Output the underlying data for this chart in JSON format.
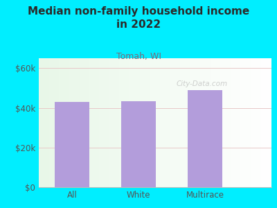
{
  "categories": [
    "All",
    "White",
    "Multirace"
  ],
  "values": [
    43000,
    43200,
    49000
  ],
  "bar_color": "#b39ddb",
  "title": "Median non-family household income\nin 2022",
  "subtitle": "Tomah, WI",
  "subtitle_color": "#7a6a7a",
  "title_color": "#2a2a2a",
  "background_color": "#00eeff",
  "ylabel_ticks": [
    0,
    20000,
    40000,
    60000
  ],
  "ylabel_labels": [
    "$0",
    "$20k",
    "$40k",
    "$60k"
  ],
  "ylim": [
    0,
    65000
  ],
  "grid_color": "#e8c8c8",
  "tick_color": "#555555",
  "watermark": "City-Data.com"
}
